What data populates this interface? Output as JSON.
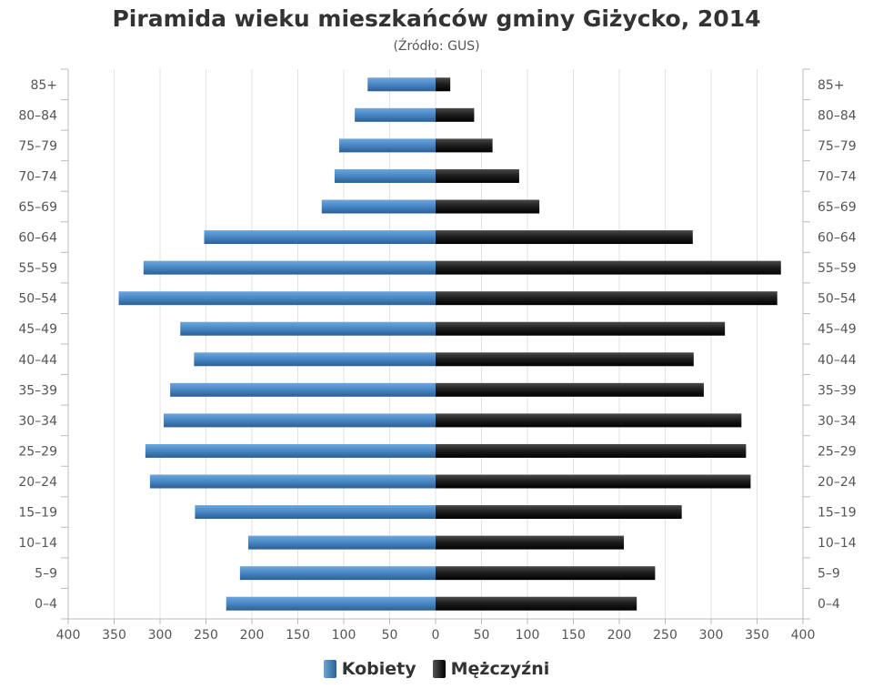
{
  "chart_data": {
    "type": "bar",
    "orientation": "horizontal",
    "title": "Piramida wieku mieszkańców gminy Giżycko, 2014",
    "subtitle": "(Źródło: GUS)",
    "categories": [
      "0–4",
      "5–9",
      "10–14",
      "15–19",
      "20–24",
      "25–29",
      "30–34",
      "35–39",
      "40–44",
      "45–49",
      "50–54",
      "55–59",
      "60–64",
      "65–69",
      "70–74",
      "75–79",
      "80–84",
      "85+"
    ],
    "series": [
      {
        "name": "Kobiety",
        "color": "#3d7ab8",
        "side": "left",
        "values": [
          228,
          213,
          204,
          262,
          311,
          316,
          296,
          289,
          263,
          278,
          345,
          318,
          252,
          124,
          110,
          105,
          88,
          74
        ]
      },
      {
        "name": "Mężczyźni",
        "color": "#1a1a1a",
        "side": "right",
        "values": [
          219,
          239,
          205,
          268,
          343,
          338,
          333,
          292,
          281,
          315,
          372,
          376,
          280,
          113,
          91,
          62,
          42,
          16
        ]
      }
    ],
    "xlim": [
      -400,
      400
    ],
    "xticks": [
      "400",
      "350",
      "300",
      "250",
      "200",
      "150",
      "100",
      "50",
      "0",
      "50",
      "100",
      "150",
      "200",
      "250",
      "300",
      "350",
      "400"
    ],
    "grid": true,
    "legend_position": "bottom"
  }
}
